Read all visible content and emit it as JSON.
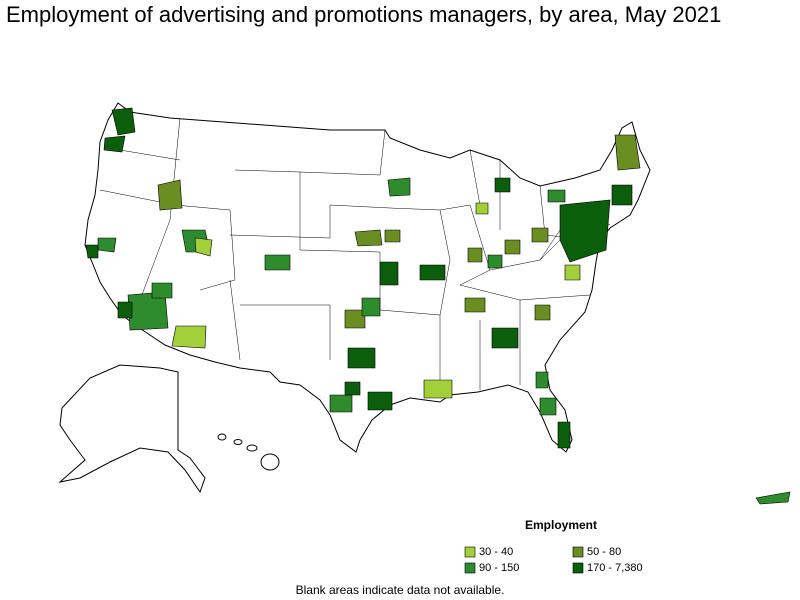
{
  "title": "Employment of advertising and promotions managers, by area, May 2021",
  "legend": {
    "title": "Employment",
    "items": [
      {
        "label": "30 - 40",
        "color": "#a3cf3a"
      },
      {
        "label": "90 - 150",
        "color": "#2e8b2e"
      },
      {
        "label": "50 - 80",
        "color": "#6b8e23"
      },
      {
        "label": "170 - 7,380",
        "color": "#0b5e0b"
      }
    ]
  },
  "note": "Blank areas indicate data not available."
}
